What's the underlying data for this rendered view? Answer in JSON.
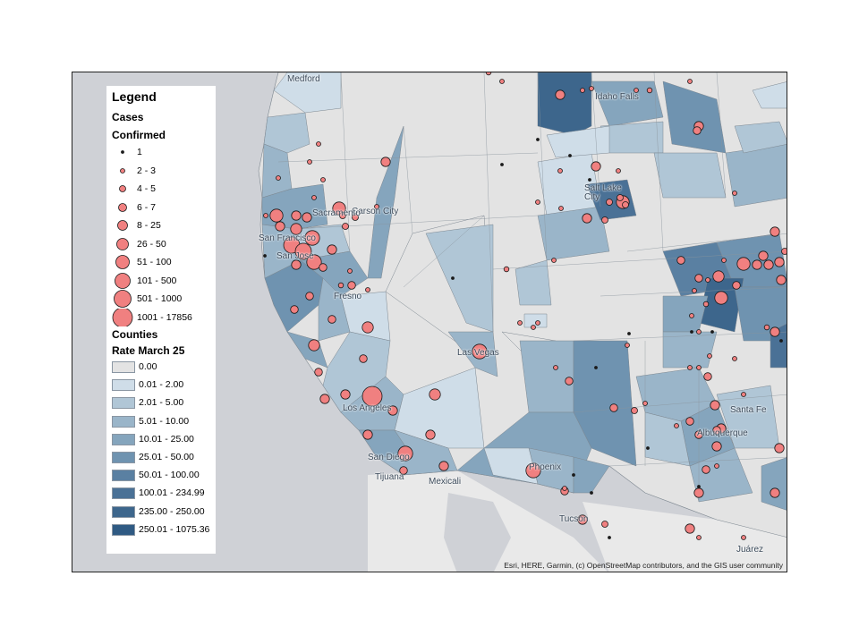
{
  "legend": {
    "title": "Legend",
    "cases_title": "Cases",
    "cases_subtitle": "Confirmed",
    "case_classes": [
      {
        "label": "1",
        "r": 1.5
      },
      {
        "label": "2 - 3",
        "r": 2.5
      },
      {
        "label": "4 - 5",
        "r": 3.5
      },
      {
        "label": "6 - 7",
        "r": 4.5
      },
      {
        "label": "8 - 25",
        "r": 5.5
      },
      {
        "label": "26 - 50",
        "r": 6.5
      },
      {
        "label": "51 - 100",
        "r": 7.5
      },
      {
        "label": "101 - 500",
        "r": 8.5
      },
      {
        "label": "501 - 1000",
        "r": 9.5
      },
      {
        "label": "1001 - 17856",
        "r": 11
      }
    ],
    "counties_title": "Counties",
    "counties_subtitle": "Rate March 25",
    "rate_classes": [
      {
        "label": "0.00",
        "color": "#e3e3e3"
      },
      {
        "label": "0.01 - 2.00",
        "color": "#cfdde8"
      },
      {
        "label": "2.01 - 5.00",
        "color": "#b0c6d6"
      },
      {
        "label": "5.01 - 10.00",
        "color": "#9ab5c9"
      },
      {
        "label": "10.01 - 25.00",
        "color": "#85a5bd"
      },
      {
        "label": "25.01 - 50.00",
        "color": "#6f93b0"
      },
      {
        "label": "50.01 - 100.00",
        "color": "#5a80a2"
      },
      {
        "label": "100.01 - 234.99",
        "color": "#4a7196"
      },
      {
        "label": "235.00 - 250.00",
        "color": "#3d668c"
      },
      {
        "label": "250.01 - 1075.36",
        "color": "#2f5a83"
      }
    ]
  },
  "map": {
    "case_symbol_fill": "#f08080",
    "case_symbol_stroke": "#1a1a1a",
    "city_labels": [
      "Medford",
      "Idaho Falls",
      "Salt Lake City",
      "Carson City",
      "San Francisco",
      "San Jose",
      "Fresno",
      "Las Vegas",
      "Los Angeles",
      "San Diego",
      "Tijuana",
      "Mexicali",
      "Phoenix",
      "Tucson",
      "Albuquerque",
      "Santa Fe",
      "Juárez",
      "Sacramento"
    ],
    "attribution": "Esri, HERE, Garmin, (c) OpenStreetMap contributors, and the GIS user community"
  }
}
